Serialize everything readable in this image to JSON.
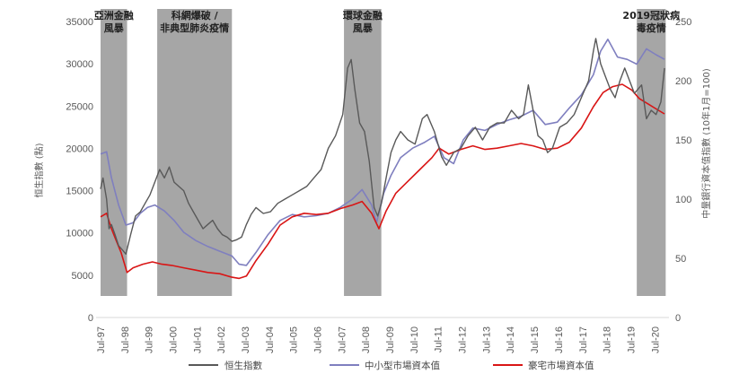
{
  "chart_data": {
    "type": "line",
    "title": "",
    "ylabel_left": "恒生指數 (點)",
    "ylabel_right": "中量銀行資本值指數 (10年1月=100)",
    "ylim_left": [
      0,
      35000
    ],
    "ylim_right": [
      0,
      250
    ],
    "yticks_left": [
      "0",
      "5000",
      "10000",
      "15000",
      "20000",
      "25000",
      "30000",
      "35000"
    ],
    "yticks_right": [
      "0",
      "50",
      "100",
      "150",
      "200",
      "250"
    ],
    "xticks": [
      "Jul-97",
      "Jul-98",
      "Jul-99",
      "Jul-00",
      "Jul-01",
      "Jul-02",
      "Jul-03",
      "Jul-04",
      "Jul-05",
      "Jul-06",
      "Jul-07",
      "Jul-08",
      "Jul-09",
      "Jul-10",
      "Jul-11",
      "Jul-12",
      "Jul-13",
      "Jul-14",
      "Jul-15",
      "Jul-16",
      "Jul-17",
      "Jul-18",
      "Jul-19",
      "Jul-20"
    ],
    "shaded_periods": [
      {
        "label": [
          "亞洲金融",
          "風暴"
        ],
        "start": 1997.55,
        "end": 1998.65
      },
      {
        "label": [
          "科網爆破 /",
          "非典型肺炎疫情"
        ],
        "start": 1999.9,
        "end": 2003.0
      },
      {
        "label": [
          "環球金融",
          "風暴"
        ],
        "start": 2007.65,
        "end": 2009.2
      },
      {
        "label": [
          "2019冠狀病",
          "毒疫情"
        ],
        "start": 2019.8,
        "end": 2021.0
      }
    ],
    "legend": [
      "恒生指數",
      "中小型市場資本值",
      "豪宅市場資本值"
    ],
    "series": [
      {
        "name": "恒生指數",
        "axis": "left",
        "color": "#595959",
        "x": [
          1997.55,
          1997.65,
          1997.8,
          1997.9,
          1998.0,
          1998.15,
          1998.3,
          1998.45,
          1998.6,
          1998.8,
          1999.0,
          1999.2,
          1999.4,
          1999.6,
          1999.8,
          2000.0,
          2000.2,
          2000.4,
          2000.6,
          2000.8,
          2001.0,
          2001.2,
          2001.4,
          2001.6,
          2001.8,
          2002.0,
          2002.2,
          2002.4,
          2002.6,
          2002.8,
          2003.0,
          2003.2,
          2003.4,
          2003.6,
          2003.8,
          2004.0,
          2004.3,
          2004.6,
          2004.9,
          2005.2,
          2005.5,
          2005.8,
          2006.1,
          2006.4,
          2006.7,
          2007.0,
          2007.3,
          2007.6,
          2007.8,
          2007.95,
          2008.1,
          2008.3,
          2008.5,
          2008.7,
          2008.9,
          2009.05,
          2009.2,
          2009.4,
          2009.6,
          2009.8,
          2010.0,
          2010.3,
          2010.6,
          2010.9,
          2011.1,
          2011.4,
          2011.7,
          2011.9,
          2012.2,
          2012.5,
          2012.8,
          2013.1,
          2013.4,
          2013.7,
          2014.0,
          2014.3,
          2014.6,
          2014.9,
          2015.1,
          2015.3,
          2015.5,
          2015.7,
          2015.9,
          2016.1,
          2016.3,
          2016.6,
          2016.9,
          2017.2,
          2017.5,
          2017.8,
          2018.0,
          2018.1,
          2018.3,
          2018.5,
          2018.7,
          2018.9,
          2019.1,
          2019.3,
          2019.5,
          2019.7,
          2019.85,
          2020.0,
          2020.2,
          2020.4,
          2020.6,
          2020.8,
          2020.95
        ],
        "values": [
          15200,
          16500,
          14000,
          10500,
          11000,
          9800,
          8500,
          8000,
          7500,
          9800,
          12000,
          12500,
          13500,
          14500,
          16000,
          17500,
          16500,
          17800,
          16000,
          15500,
          15000,
          13500,
          12500,
          11500,
          10500,
          11000,
          11500,
          10500,
          9800,
          9500,
          9000,
          9200,
          9500,
          11000,
          12200,
          13000,
          12300,
          12500,
          13500,
          14000,
          14500,
          15000,
          15500,
          16500,
          17500,
          20000,
          21500,
          24000,
          29500,
          30500,
          27000,
          23000,
          22000,
          18500,
          13000,
          12000,
          13500,
          16500,
          19500,
          21000,
          22000,
          21000,
          20500,
          23500,
          24000,
          22000,
          19000,
          18000,
          19500,
          20000,
          21500,
          22500,
          21000,
          22500,
          23000,
          23000,
          24500,
          23500,
          24000,
          27500,
          24500,
          21500,
          21000,
          19500,
          20000,
          22500,
          23000,
          24000,
          26000,
          28000,
          31500,
          33000,
          30000,
          28500,
          27000,
          26000,
          28000,
          29500,
          28000,
          26500,
          27000,
          27500,
          23500,
          24500,
          24000,
          25500,
          29500
        ]
      },
      {
        "name": "中小型市場資本值",
        "axis": "right",
        "color": "#7f7fbf",
        "x": [
          1997.55,
          1997.8,
          1998.0,
          1998.3,
          1998.6,
          1998.9,
          1999.2,
          1999.5,
          1999.8,
          2000.2,
          2000.6,
          2001.0,
          2001.5,
          2002.0,
          2002.5,
          2003.0,
          2003.3,
          2003.6,
          2004.0,
          2004.5,
          2005.0,
          2005.5,
          2006.0,
          2006.5,
          2007.0,
          2007.5,
          2008.0,
          2008.4,
          2008.8,
          2009.0,
          2009.3,
          2009.6,
          2010.0,
          2010.5,
          2011.0,
          2011.4,
          2011.8,
          2012.2,
          2012.6,
          2013.0,
          2013.5,
          2014.0,
          2014.5,
          2015.0,
          2015.5,
          2016.0,
          2016.5,
          2017.0,
          2017.5,
          2018.0,
          2018.3,
          2018.6,
          2019.0,
          2019.4,
          2019.8,
          2020.2,
          2020.6,
          2020.95
        ],
        "values": [
          138,
          140,
          118,
          95,
          78,
          80,
          88,
          93,
          95,
          90,
          82,
          72,
          65,
          60,
          56,
          52,
          45,
          44,
          55,
          70,
          82,
          87,
          85,
          86,
          88,
          93,
          100,
          108,
          95,
          80,
          105,
          120,
          135,
          143,
          148,
          153,
          135,
          130,
          150,
          160,
          158,
          163,
          167,
          170,
          175,
          163,
          165,
          177,
          188,
          205,
          225,
          235,
          220,
          218,
          214,
          227,
          222,
          218
        ]
      },
      {
        "name": "豪宅市場資本值",
        "axis": "right",
        "color": "#d91515",
        "x": [
          1997.55,
          1997.8,
          1998.0,
          1998.2,
          1998.4,
          1998.65,
          1998.9,
          1999.3,
          1999.7,
          2000.1,
          2000.5,
          2001.0,
          2001.5,
          2002.0,
          2002.5,
          2003.0,
          2003.3,
          2003.6,
          2004.0,
          2004.5,
          2005.0,
          2005.5,
          2006.0,
          2006.5,
          2007.0,
          2007.5,
          2008.0,
          2008.4,
          2008.8,
          2009.1,
          2009.4,
          2009.8,
          2010.3,
          2010.8,
          2011.3,
          2011.6,
          2012.0,
          2012.5,
          2013.0,
          2013.5,
          2014.0,
          2014.5,
          2015.0,
          2015.5,
          2016.0,
          2016.5,
          2017.0,
          2017.5,
          2018.0,
          2018.4,
          2018.8,
          2019.2,
          2019.6,
          2019.9,
          2020.3,
          2020.7,
          2020.95
        ],
        "values": [
          85,
          88,
          75,
          65,
          55,
          38,
          42,
          45,
          47,
          45,
          44,
          42,
          40,
          38,
          37,
          34,
          33,
          35,
          48,
          62,
          78,
          85,
          88,
          87,
          88,
          92,
          95,
          98,
          88,
          75,
          90,
          105,
          115,
          125,
          135,
          143,
          138,
          142,
          145,
          142,
          143,
          145,
          147,
          145,
          142,
          143,
          148,
          160,
          178,
          190,
          195,
          197,
          192,
          185,
          180,
          175,
          172
        ]
      }
    ]
  }
}
